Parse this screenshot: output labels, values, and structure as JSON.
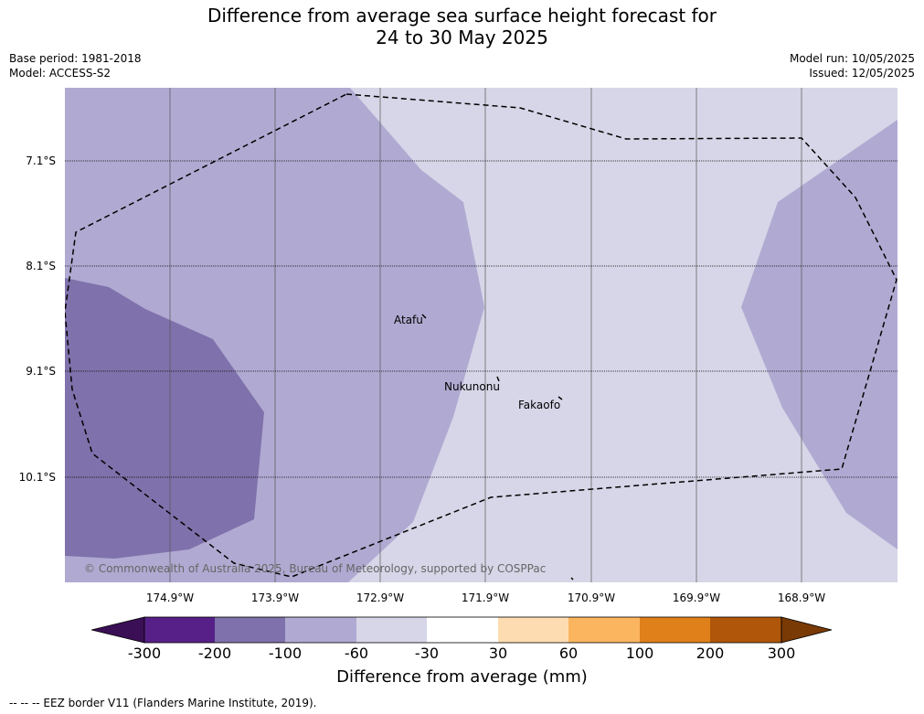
{
  "title_line1": "Difference from average sea surface height forecast for",
  "title_line2": "24 to 30 May 2025",
  "meta_left": [
    "Base period: 1981-2018",
    "Model: ACCESS-S2"
  ],
  "meta_right": [
    "Model run: 10/05/2025",
    "Issued: 12/05/2025"
  ],
  "map": {
    "lat_labels": [
      "7.1°S",
      "8.1°S",
      "9.1°S",
      "10.1°S"
    ],
    "lon_labels": [
      "174.9°W",
      "173.9°W",
      "172.9°W",
      "171.9°W",
      "170.9°W",
      "169.9°W",
      "168.9°W"
    ],
    "places": [
      "Atafu",
      "Nukunonu",
      "Fakaofo"
    ],
    "copyright": "© Commonwealth of Australia 2025, Bureau of Meteorology, supported by COSPPac",
    "fill_colors": {
      "-60_to_-30": "#d6d6e8",
      "-100_to_-60": "#b0aad2",
      "-200_to_-100": "#7f71ab"
    }
  },
  "colorbar": {
    "ticks": [
      "-300",
      "-200",
      "-100",
      "-60",
      "-30",
      "30",
      "60",
      "100",
      "200",
      "300"
    ],
    "colors": [
      "#3b0f55",
      "#562088",
      "#7f71ab",
      "#b0aad2",
      "#d6d6e8",
      "#ffffff",
      "#fddcb1",
      "#fbb55f",
      "#e0801a",
      "#b0560a",
      "#7a3a05"
    ],
    "label": "Difference from average (mm)"
  },
  "footnote": "--  --  -- EEZ border V11 (Flanders Marine Institute, 2019)."
}
